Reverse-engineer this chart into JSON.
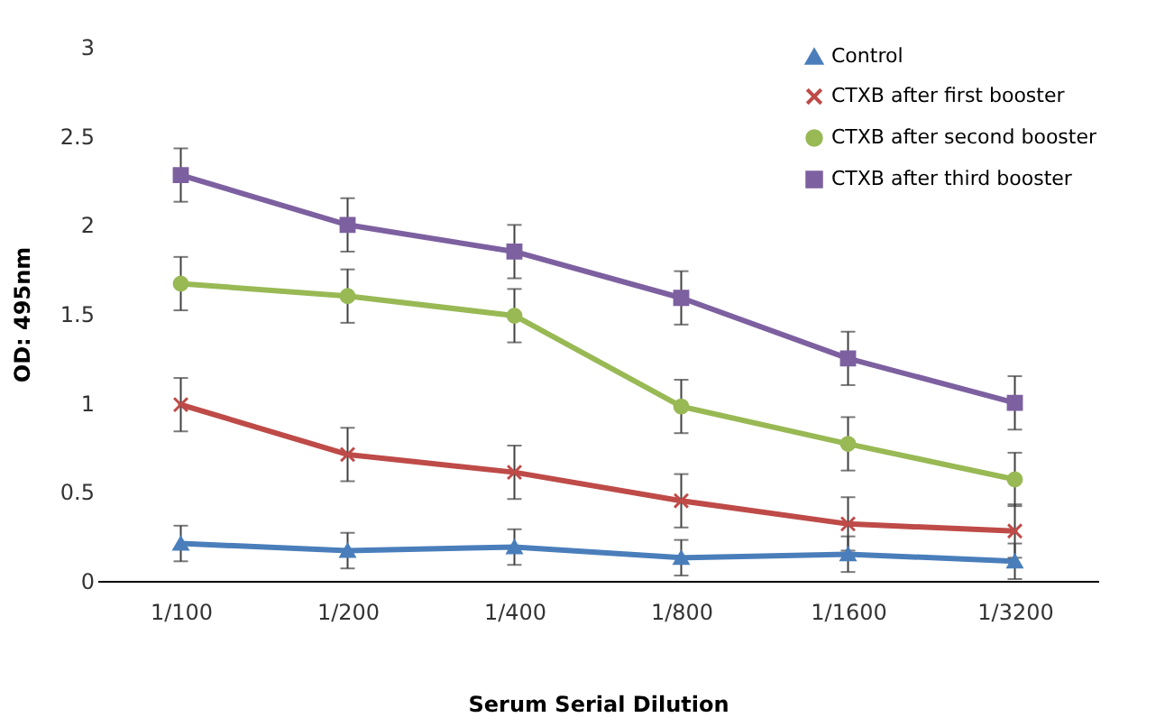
{
  "chart_data": {
    "type": "line",
    "categories": [
      "1/100",
      "1/200",
      "1/400",
      "1/800",
      "1/1600",
      "1/3200"
    ],
    "xlabel": "Serum Serial Dilution",
    "ylabel": "OD: 495nm",
    "ylim": [
      0,
      3
    ],
    "yticks": [
      0,
      0.5,
      1,
      1.5,
      2,
      2.5,
      3
    ],
    "grid": false,
    "legend": "top right",
    "series": [
      {
        "name": "Control",
        "color": "#4a7ebb",
        "marker": "triangle",
        "values": [
          0.21,
          0.17,
          0.19,
          0.13,
          0.15,
          0.11
        ],
        "errors": [
          0.1,
          0.1,
          0.1,
          0.1,
          0.1,
          0.1
        ]
      },
      {
        "name": "CTXB after first booster",
        "color": "#be4b48",
        "marker": "cross",
        "values": [
          0.99,
          0.71,
          0.61,
          0.45,
          0.32,
          0.28
        ],
        "errors": [
          0.15,
          0.15,
          0.15,
          0.15,
          0.15,
          0.15
        ]
      },
      {
        "name": "CTXB after second booster",
        "color": "#98b954",
        "marker": "circle",
        "values": [
          1.67,
          1.6,
          1.49,
          0.98,
          0.77,
          0.57
        ],
        "errors": [
          0.15,
          0.15,
          0.15,
          0.15,
          0.15,
          0.15
        ]
      },
      {
        "name": "CTXB after third booster",
        "color": "#7d60a0",
        "marker": "square",
        "values": [
          2.28,
          2.0,
          1.85,
          1.59,
          1.25,
          1.0
        ],
        "errors": [
          0.15,
          0.15,
          0.15,
          0.15,
          0.15,
          0.15
        ]
      }
    ]
  }
}
